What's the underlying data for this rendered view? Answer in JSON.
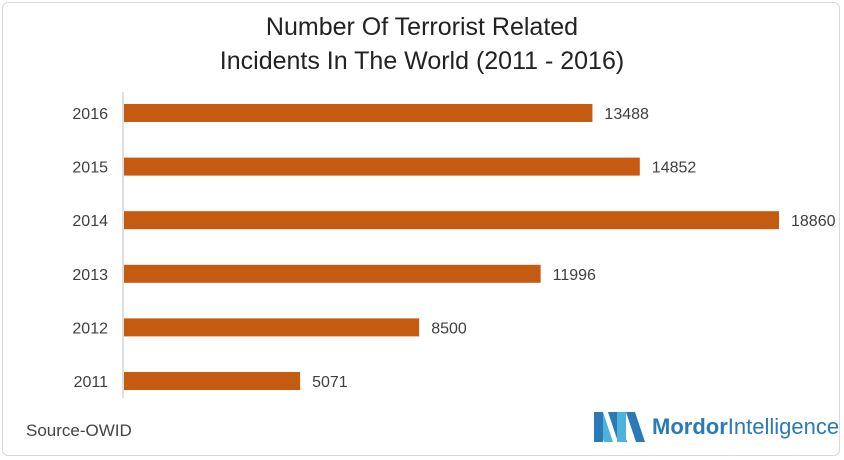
{
  "chart_data": {
    "type": "bar",
    "orientation": "horizontal",
    "title_lines": [
      "Number Of Terrorist Related",
      "Incidents In The World (2011 - 2016)"
    ],
    "categories": [
      "2016",
      "2015",
      "2014",
      "2013",
      "2012",
      "2011"
    ],
    "values": [
      13488,
      14852,
      18860,
      11996,
      8500,
      5071
    ],
    "xlim": [
      0,
      18860
    ],
    "grid": false,
    "legend": "none",
    "data_labels": true
  },
  "source": "Source-OWID",
  "brand": {
    "name_part1": "Mordor",
    "name_part2": "Intelligence"
  },
  "colors": {
    "bar": "#c55a11",
    "text": "#3f3f3f",
    "axis": "#bfbfbf",
    "brand_blue": "#2a7ab8",
    "brand_light": "#4fb3d9"
  }
}
